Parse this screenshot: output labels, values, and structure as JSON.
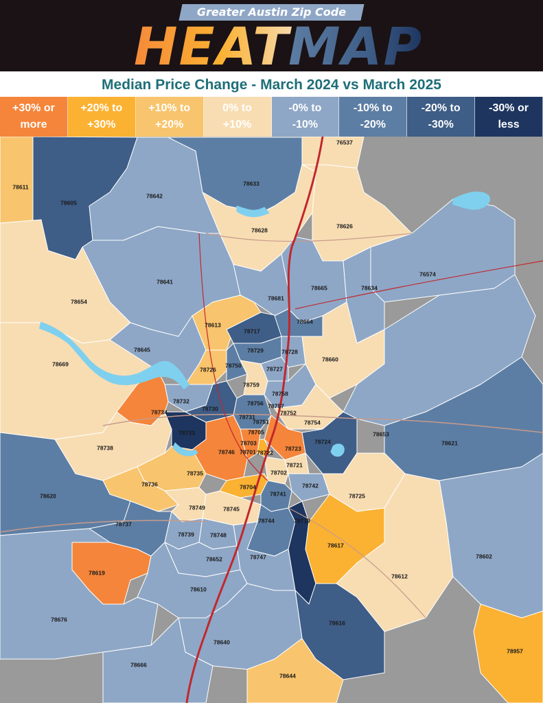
{
  "header": {
    "tagline": "Greater Austin Zip Code",
    "title_word1": "HEAT",
    "title_word2": "MAP"
  },
  "subtitle": "Median Price Change - March 2024 vs March 2025",
  "colors": {
    "c1": "#f5853a",
    "c2": "#fbb132",
    "c3": "#f8c46d",
    "c4": "#f8ddb3",
    "c5": "#8ea7c6",
    "c6": "#5d7ea4",
    "c7": "#3e5d87",
    "c8": "#1d355f",
    "grey": "#9a9a9a",
    "water": "#7fd0ee",
    "highway": "#c1272d",
    "road": "#c79b8b"
  },
  "legend": [
    {
      "label": "+30% or\nmore",
      "color": "#f5853a"
    },
    {
      "label": "+20% to\n+30%",
      "color": "#fbb132"
    },
    {
      "label": "+10% to\n+20%",
      "color": "#f8c46d"
    },
    {
      "label": "0% to\n+10%",
      "color": "#f8ddb3"
    },
    {
      "label": "-0% to\n-10%",
      "color": "#8ea7c6"
    },
    {
      "label": "-10% to\n-20%",
      "color": "#5d7ea4"
    },
    {
      "label": "-20% to\n-30%",
      "color": "#3e5d87"
    },
    {
      "label": "-30% or\nless",
      "color": "#1d355f"
    }
  ],
  "zip_labels": [
    "76537",
    "78611",
    "78605",
    "78633",
    "78642",
    "78628",
    "78626",
    "78641",
    "76574",
    "78654",
    "78665",
    "78634",
    "78681",
    "78664",
    "78613",
    "78717",
    "78645",
    "78729",
    "78728",
    "78660",
    "78669",
    "78726",
    "78750",
    "78727",
    "78759",
    "78758",
    "78732",
    "78730",
    "78731",
    "78734",
    "78754",
    "78653",
    "78733",
    "78746",
    "78723",
    "78724",
    "78621",
    "78738",
    "78722",
    "78721",
    "78702",
    "78735",
    "78742",
    "78736",
    "78704",
    "78741",
    "78725",
    "78620",
    "78749",
    "78745",
    "78744",
    "78719",
    "78737",
    "78739",
    "78748",
    "78617",
    "78652",
    "78747",
    "78612",
    "78602",
    "78619",
    "78610",
    "78676",
    "78616",
    "78640",
    "78957",
    "78666",
    "78644",
    "78701",
    "78703",
    "78756",
    "78757",
    "78752",
    "78751",
    "78705"
  ],
  "zones": [
    {
      "zip": "78611",
      "band": "c3"
    },
    {
      "zip": "78605",
      "band": "c7"
    },
    {
      "zip": "78642",
      "band": "c5"
    },
    {
      "zip": "78633",
      "band": "c6"
    },
    {
      "zip": "78628",
      "band": "c4"
    },
    {
      "zip": "78626",
      "band": "c4"
    },
    {
      "zip": "76537",
      "band": "c4"
    },
    {
      "zip": "78641",
      "band": "c5"
    },
    {
      "zip": "78654",
      "band": "c4"
    },
    {
      "zip": "78669",
      "band": "c4"
    },
    {
      "zip": "78645",
      "band": "c5"
    },
    {
      "zip": "78681",
      "band": "c5"
    },
    {
      "zip": "78665",
      "band": "c5"
    },
    {
      "zip": "78634",
      "band": "c5"
    },
    {
      "zip": "76574",
      "band": "c5"
    },
    {
      "zip": "78664",
      "band": "c6"
    },
    {
      "zip": "78613",
      "band": "c3"
    },
    {
      "zip": "78717",
      "band": "c7"
    },
    {
      "zip": "78729",
      "band": "c6"
    },
    {
      "zip": "78728",
      "band": "c5"
    },
    {
      "zip": "78660",
      "band": "c4"
    },
    {
      "zip": "78726",
      "band": "c3"
    },
    {
      "zip": "78750",
      "band": "c6"
    },
    {
      "zip": "78727",
      "band": "c5"
    },
    {
      "zip": "78759",
      "band": "c4"
    },
    {
      "zip": "78758",
      "band": "c5"
    },
    {
      "zip": "78732",
      "band": "c5"
    },
    {
      "zip": "78730",
      "band": "c7"
    },
    {
      "zip": "78731",
      "band": "c6"
    },
    {
      "zip": "78734",
      "band": "c1"
    },
    {
      "zip": "78754",
      "band": "c4"
    },
    {
      "zip": "78653",
      "band": "c5"
    },
    {
      "zip": "78733",
      "band": "c8"
    },
    {
      "zip": "78746",
      "band": "c1"
    },
    {
      "zip": "78723",
      "band": "c1"
    },
    {
      "zip": "78724",
      "band": "c7"
    },
    {
      "zip": "78621",
      "band": "c6"
    },
    {
      "zip": "78738",
      "band": "c4"
    },
    {
      "zip": "78722",
      "band": "c2"
    },
    {
      "zip": "78721",
      "band": "c4"
    },
    {
      "zip": "78702",
      "band": "c4"
    },
    {
      "zip": "78735",
      "band": "c3"
    },
    {
      "zip": "78742",
      "band": "c5"
    },
    {
      "zip": "78736",
      "band": "c3"
    },
    {
      "zip": "78704",
      "band": "c2"
    },
    {
      "zip": "78741",
      "band": "c6"
    },
    {
      "zip": "78725",
      "band": "c4"
    },
    {
      "zip": "78620",
      "band": "c6"
    },
    {
      "zip": "78749",
      "band": "c4"
    },
    {
      "zip": "78745",
      "band": "c4"
    },
    {
      "zip": "78744",
      "band": "c6"
    },
    {
      "zip": "78719",
      "band": "c8"
    },
    {
      "zip": "78737",
      "band": "c6"
    },
    {
      "zip": "78739",
      "band": "c5"
    },
    {
      "zip": "78748",
      "band": "c5"
    },
    {
      "zip": "78617",
      "band": "c2"
    },
    {
      "zip": "78652",
      "band": "c5"
    },
    {
      "zip": "78747",
      "band": "c5"
    },
    {
      "zip": "78612",
      "band": "c4"
    },
    {
      "zip": "78602",
      "band": "c5"
    },
    {
      "zip": "78619",
      "band": "c1"
    },
    {
      "zip": "78610",
      "band": "c5"
    },
    {
      "zip": "78676",
      "band": "c5"
    },
    {
      "zip": "78616",
      "band": "c7"
    },
    {
      "zip": "78640",
      "band": "c5"
    },
    {
      "zip": "78957",
      "band": "c2"
    },
    {
      "zip": "78666",
      "band": "c5"
    },
    {
      "zip": "78644",
      "band": "c3"
    }
  ]
}
